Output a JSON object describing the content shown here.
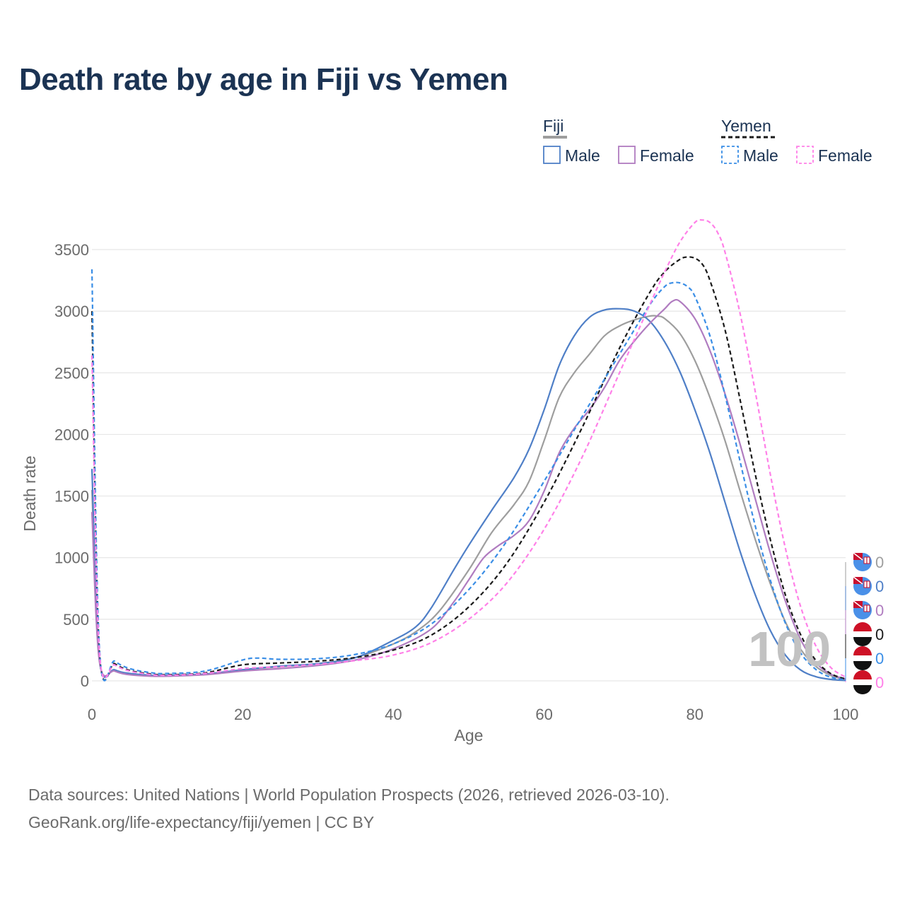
{
  "title": "Death rate by age in Fiji vs Yemen",
  "footer": {
    "source": "Data sources: United Nations | World Population Prospects (2026, retrieved 2026-03-10).",
    "credit": "GeoRank.org/life-expectancy/fiji/yemen | CC BY"
  },
  "legend": {
    "groups": [
      {
        "country": "Fiji",
        "line_color": "#9e9e9e",
        "line_style": "solid",
        "items": [
          {
            "label": "Male",
            "color": "#4f7fc7",
            "style": "solid"
          },
          {
            "label": "Female",
            "color": "#b07cc0",
            "style": "solid"
          }
        ]
      },
      {
        "country": "Yemen",
        "line_color": "#1a1a1a",
        "line_style": "dashed",
        "items": [
          {
            "label": "Male",
            "color": "#3a8ee6",
            "style": "dashed"
          },
          {
            "label": "Female",
            "color": "#ff80e8",
            "style": "dashed"
          }
        ]
      }
    ]
  },
  "year_watermark": "100",
  "end_labels": [
    {
      "flag": "fiji-flag-icon",
      "value": "0",
      "color": "#9e9e9e"
    },
    {
      "flag": "fiji-flag-icon",
      "value": "0",
      "color": "#4f7fc7"
    },
    {
      "flag": "fiji-flag-icon",
      "value": "0",
      "color": "#b07cc0"
    },
    {
      "flag": "yemen-flag-icon",
      "value": "0",
      "color": "#1a1a1a"
    },
    {
      "flag": "yemen-flag-icon",
      "value": "0",
      "color": "#3a8ee6"
    },
    {
      "flag": "yemen-flag-icon",
      "value": "0",
      "color": "#ff80e8"
    }
  ],
  "chart_data": {
    "type": "line",
    "xlabel": "Age",
    "ylabel": "Death rate",
    "xlim": [
      0,
      100
    ],
    "ylim": [
      0,
      3500
    ],
    "xticks": [
      0,
      20,
      40,
      60,
      80,
      100
    ],
    "yticks": [
      0,
      500,
      1000,
      1500,
      2000,
      2500,
      3000,
      3500
    ],
    "grid": true,
    "series": [
      {
        "name": "Fiji (total)",
        "color": "#9e9e9e",
        "dash": false,
        "x": [
          0,
          1,
          3,
          5,
          8,
          10,
          15,
          20,
          25,
          30,
          35,
          40,
          43,
          46,
          50,
          53,
          56,
          58,
          60,
          62,
          64,
          66,
          68,
          70,
          72,
          74,
          75,
          76,
          78,
          80,
          82,
          84,
          86,
          88,
          90,
          92,
          94,
          96,
          98,
          100
        ],
        "y": [
          1550,
          165,
          85,
          55,
          40,
          40,
          55,
          90,
          115,
          140,
          190,
          300,
          400,
          560,
          900,
          1200,
          1430,
          1620,
          1950,
          2300,
          2500,
          2650,
          2800,
          2880,
          2930,
          2960,
          2960,
          2940,
          2820,
          2600,
          2300,
          1950,
          1540,
          1150,
          790,
          480,
          260,
          120,
          45,
          10
        ]
      },
      {
        "name": "Fiji Male",
        "color": "#4f7fc7",
        "dash": false,
        "x": [
          0,
          1,
          3,
          5,
          8,
          10,
          15,
          20,
          25,
          30,
          35,
          40,
          43,
          45,
          48,
          50,
          53,
          56,
          58,
          60,
          62,
          64,
          66,
          68,
          70,
          72,
          74,
          76,
          78,
          80,
          82,
          84,
          86,
          88,
          90,
          92,
          94,
          96,
          98,
          100
        ],
        "y": [
          1720,
          170,
          90,
          60,
          45,
          45,
          55,
          90,
          120,
          140,
          190,
          330,
          440,
          590,
          900,
          1100,
          1380,
          1650,
          1880,
          2200,
          2560,
          2800,
          2950,
          3010,
          3020,
          3000,
          2920,
          2750,
          2510,
          2200,
          1850,
          1450,
          1050,
          700,
          410,
          210,
          90,
          35,
          12,
          3
        ]
      },
      {
        "name": "Fiji Female",
        "color": "#b07cc0",
        "dash": false,
        "x": [
          0,
          1,
          3,
          5,
          8,
          10,
          15,
          20,
          25,
          30,
          35,
          40,
          45,
          48,
          50,
          52,
          54,
          56,
          58,
          60,
          62,
          64,
          66,
          68,
          70,
          72,
          74,
          76,
          77,
          78,
          80,
          82,
          84,
          86,
          88,
          90,
          92,
          94,
          96,
          98,
          100
        ],
        "y": [
          1370,
          155,
          80,
          50,
          38,
          38,
          50,
          80,
          100,
          125,
          170,
          260,
          420,
          640,
          820,
          1000,
          1100,
          1180,
          1300,
          1540,
          1850,
          2050,
          2200,
          2380,
          2600,
          2760,
          2900,
          3020,
          3080,
          3080,
          2940,
          2680,
          2330,
          1920,
          1480,
          1040,
          650,
          340,
          150,
          55,
          15
        ]
      },
      {
        "name": "Yemen (total)",
        "color": "#1a1a1a",
        "dash": true,
        "x": [
          0,
          1,
          3,
          5,
          8,
          10,
          15,
          20,
          25,
          30,
          35,
          40,
          45,
          50,
          55,
          60,
          65,
          70,
          74,
          76,
          78,
          79,
          80,
          81,
          82,
          84,
          86,
          88,
          90,
          92,
          94,
          96,
          98,
          100
        ],
        "y": [
          3000,
          240,
          140,
          85,
          55,
          50,
          65,
          130,
          145,
          160,
          190,
          250,
          370,
          600,
          950,
          1450,
          2050,
          2700,
          3150,
          3320,
          3420,
          3440,
          3430,
          3380,
          3250,
          2850,
          2280,
          1680,
          1150,
          700,
          380,
          170,
          60,
          15
        ]
      },
      {
        "name": "Yemen Male",
        "color": "#3a8ee6",
        "dash": true,
        "x": [
          0,
          1,
          3,
          5,
          8,
          10,
          15,
          20,
          22,
          25,
          30,
          35,
          40,
          45,
          50,
          55,
          60,
          65,
          70,
          74,
          76,
          77,
          78,
          79,
          80,
          82,
          84,
          86,
          88,
          90,
          92,
          94,
          96,
          98,
          100
        ],
        "y": [
          3340,
          260,
          160,
          100,
          65,
          60,
          80,
          170,
          185,
          175,
          180,
          215,
          300,
          460,
          740,
          1130,
          1620,
          2140,
          2650,
          3050,
          3200,
          3230,
          3230,
          3200,
          3120,
          2800,
          2320,
          1780,
          1260,
          820,
          470,
          230,
          95,
          30,
          10
        ]
      },
      {
        "name": "Yemen Female",
        "color": "#ff80e8",
        "dash": true,
        "x": [
          0,
          1,
          3,
          5,
          8,
          10,
          15,
          20,
          25,
          30,
          35,
          40,
          45,
          50,
          55,
          60,
          65,
          70,
          74,
          76,
          78,
          80,
          81,
          82,
          83,
          84,
          86,
          88,
          90,
          92,
          94,
          96,
          98,
          100
        ],
        "y": [
          2640,
          230,
          130,
          80,
          50,
          45,
          60,
          100,
          115,
          135,
          165,
          210,
          310,
          500,
          790,
          1230,
          1810,
          2500,
          3050,
          3320,
          3560,
          3720,
          3740,
          3720,
          3640,
          3480,
          2980,
          2350,
          1680,
          1080,
          610,
          290,
          110,
          30
        ]
      }
    ]
  }
}
